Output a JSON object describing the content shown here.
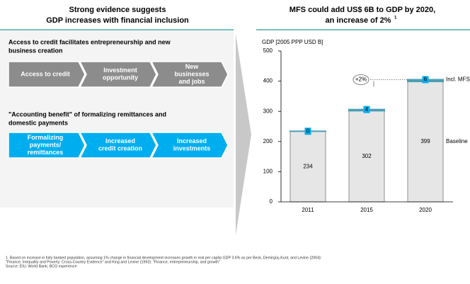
{
  "left_heading": [
    "Strong evidence suggests",
    "GDP increases with financial inclusion"
  ],
  "sections": [
    {
      "title": [
        "Access to credit facilitates entrepreneurship and new",
        "business creation"
      ],
      "steps": [
        [
          "Access to credit"
        ],
        [
          "Investment",
          "opportunity"
        ],
        [
          "New",
          "businesses",
          "and jobs"
        ]
      ]
    },
    {
      "title": [
        "\"Accounting benefit\" of formalizing remittances and",
        "domestic payments"
      ],
      "steps": [
        [
          "Formalizing",
          "payments/",
          "remittances"
        ],
        [
          "Increased",
          "credit creation"
        ],
        [
          "Increased",
          "investments"
        ]
      ]
    }
  ],
  "chart_data": {
    "type": "stacked_bar",
    "title": [
      "MFS could add US$ 6B to GDP by 2020,",
      "an increase of 2%"
    ],
    "title_note": "1",
    "y_label": "GDP [2005 PPP USD B]",
    "categories": [
      "2011",
      "2015",
      "2020"
    ],
    "series": [
      {
        "name": "Baseline",
        "color": "#e6e6e6",
        "values": [
          234,
          302,
          399
        ]
      },
      {
        "name": "Incl. MFS",
        "color": "#4a9fb5",
        "values": [
          0,
          4,
          6
        ]
      }
    ],
    "ylim": [
      0,
      500
    ],
    "yticks": [
      0,
      100,
      200,
      300,
      400,
      500
    ],
    "annotation": "+2%"
  },
  "footnotes": [
    "1. Based on increase in fully banked population, assuming 1% change in financial development increases growth in real per capita GDP 3.6% as per  Beck, Demirgüç-Kunt, and Levine (2004):",
    "''Finance, Inequality and Poverty: Cross-Country Evidence\" and King and Levine (1993): \"Finance, entrepreneurship, and growth\"",
    "Source: EIU; World Bank; BCG experience"
  ]
}
